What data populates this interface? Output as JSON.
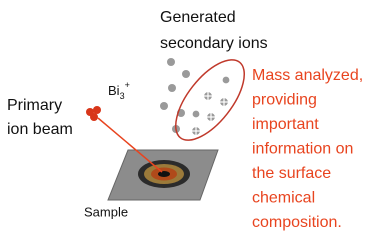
{
  "ions_label": [
    "Generated",
    "secondary ions"
  ],
  "primary_ion": {
    "base": "Bi",
    "sub": "3",
    "sup": "+"
  },
  "beam_label": [
    "Primary",
    "ion beam"
  ],
  "sample_label": "Sample",
  "analysis_note": [
    "Mass analyzed,",
    "providing",
    "important",
    "information on",
    "the surface",
    "chemical",
    "composition."
  ]
}
